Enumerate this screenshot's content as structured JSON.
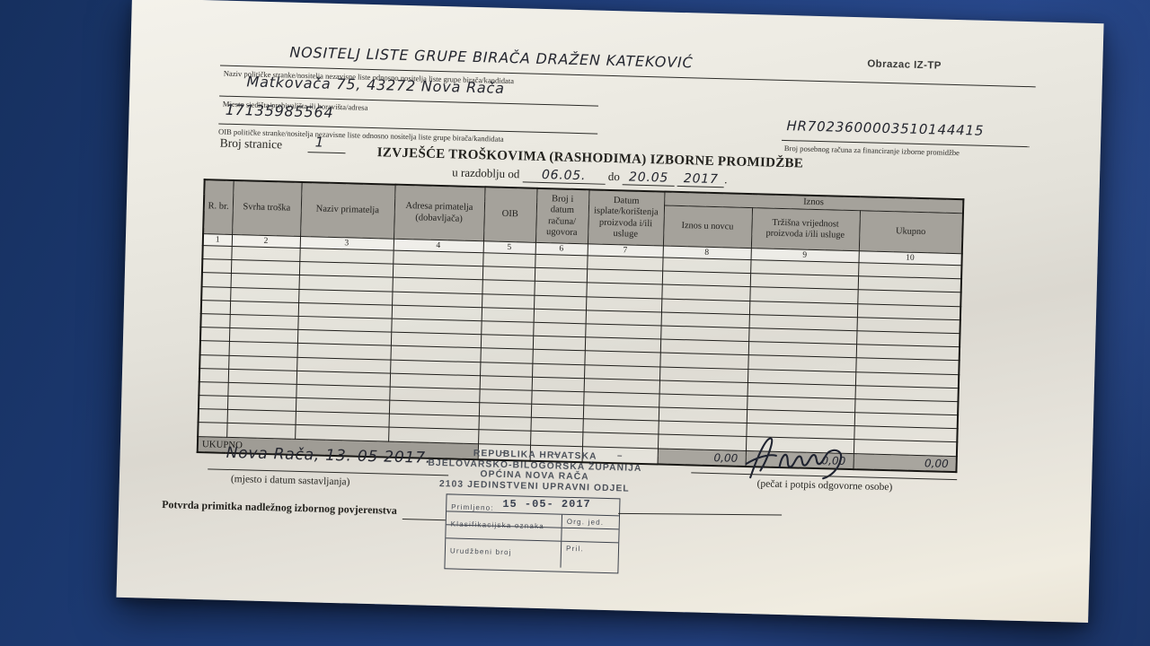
{
  "form": {
    "obrazac": "Obrazac IZ-TP",
    "fields": {
      "name_value": "NOSITELJ LISTE GRUPE BIRAČA DRAŽEN KATEKOVIĆ",
      "name_label": "Naziv političke stranke/nositelja nezavisne liste odnosno nositelja liste grupe birača/kandidata",
      "address_value": "Matkovača 75, 43272 Nova Rača",
      "address_label": "Mjesto sjedišta/prebivališta ili boravišta/adresa",
      "oib_value": "17135985564",
      "oib_label": "OIB političke stranke/nositelja nezavisne liste odnosno nositelja liste grupe birača/kandidata",
      "account_value": "HR7023600003510144415",
      "account_label": "Broj posebnog računa za financiranje izborne promidžbe",
      "page_label": "Broj stranice",
      "page_value": "1"
    },
    "title": "IZVJEŠĆE TROŠKOVIMA (RASHODIMA) IZBORNE PROMIDŽBE",
    "period": {
      "prefix": "u razdoblju od",
      "from": "06.05.",
      "do_word": "do",
      "to": "20.05",
      "year": "2017",
      "suffix": "."
    }
  },
  "table": {
    "iznos_group_label": "Iznos",
    "columns": [
      {
        "label": "R. br.",
        "num": "1"
      },
      {
        "label": "Svrha troška",
        "num": "2"
      },
      {
        "label": "Naziv primatelja",
        "num": "3"
      },
      {
        "label": "Adresa primatelja (dobavljača)",
        "num": "4"
      },
      {
        "label": "OIB",
        "num": "5"
      },
      {
        "label": "Broj i datum računa/ ugovora",
        "num": "6"
      },
      {
        "label": "Datum isplate/korištenja proizvoda i/ili usluge",
        "num": "7"
      },
      {
        "label": "Iznos u novcu",
        "num": "8"
      },
      {
        "label": "Tržišna vrijednost proizvoda i/ili usluge",
        "num": "9"
      },
      {
        "label": "Ukupno",
        "num": "10"
      }
    ],
    "empty_row_count": 14,
    "ukupno": {
      "label": "UKUPNO",
      "values": [
        "–",
        "–",
        "–",
        "0,00",
        "0,00",
        "0,00"
      ]
    }
  },
  "footer": {
    "place_date_value": "Nova Rača, 13. 05 2017.",
    "place_date_label": "(mjesto i datum sastavljanja)",
    "stamp_lines": [
      "REPUBLIKA HRVATSKA",
      "BJELOVARSKO-BILOGORSKA ŽUPANIJA",
      "OPĆINA NOVA RAČA",
      "2103 JEDINSTVENI UPRAVNI ODJEL"
    ],
    "stamp_box": {
      "primljeno_label": "Primljeno:",
      "primljeno_value": "15 -05- 2017",
      "klasifikacijska_label": "Klasifikacijska oznaka",
      "org_label": "Org. jed.",
      "urudzbeni_label": "Urudžbeni broj",
      "pril_label": "Pril."
    },
    "signature_label": "(pečat i potpis odgovorne osobe)",
    "potvrda_label": "Potvrda primitka nadležnog izbornog povjerenstva"
  }
}
